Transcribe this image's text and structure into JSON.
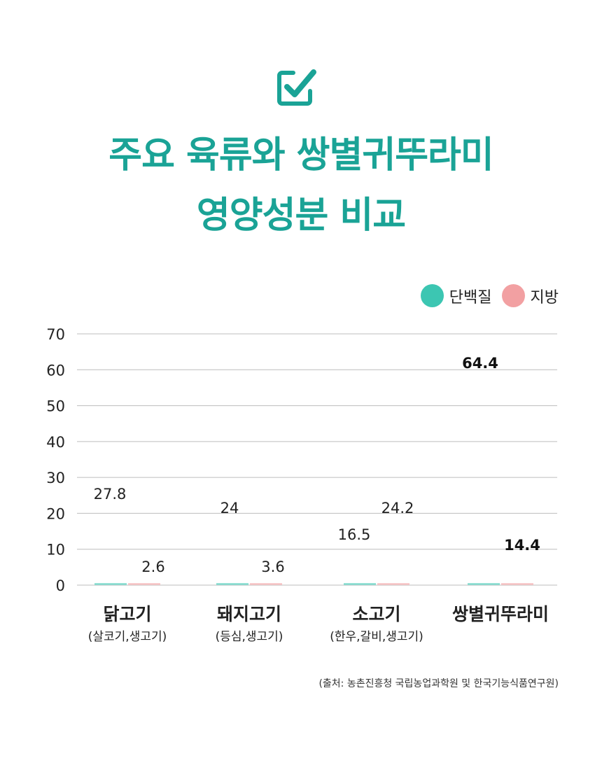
{
  "header": {
    "icon": "checkbox-check-icon",
    "title_line1": "주요 육류와 쌍별귀뚜라미",
    "title_line2": "영양성분 비교"
  },
  "colors": {
    "accent": "#1aa396",
    "protein": "#3cc6b2",
    "fat": "#f2a0a2",
    "grid": "#bdbdbd"
  },
  "chart_data": {
    "type": "bar",
    "categories": [
      "닭고기",
      "돼지고기",
      "소고기",
      "쌍별귀뚜라미"
    ],
    "subcategories": [
      "(살코기,생고기)",
      "(등심,생고기)",
      "(한우,갈비,생고기)",
      ""
    ],
    "series": [
      {
        "name": "단백질",
        "values": [
          27.8,
          24,
          16.5,
          64.4
        ]
      },
      {
        "name": "지방",
        "values": [
          2.6,
          3.6,
          24.2,
          14.4
        ]
      }
    ],
    "value_labels": {
      "단백질": [
        "27.8",
        "24",
        "16.5",
        "64.4"
      ],
      "지방": [
        "2.6",
        "3.6",
        "24.2",
        "14.4"
      ]
    },
    "ylim": [
      0,
      70
    ],
    "yticks": [
      "0",
      "10",
      "20",
      "30",
      "40",
      "50",
      "60",
      "70"
    ],
    "legend_position": "top-right",
    "grid": true
  },
  "footer": {
    "source": "(출처: 농촌진흥청 국립농업과학원 및 한국기능식품연구원)"
  }
}
